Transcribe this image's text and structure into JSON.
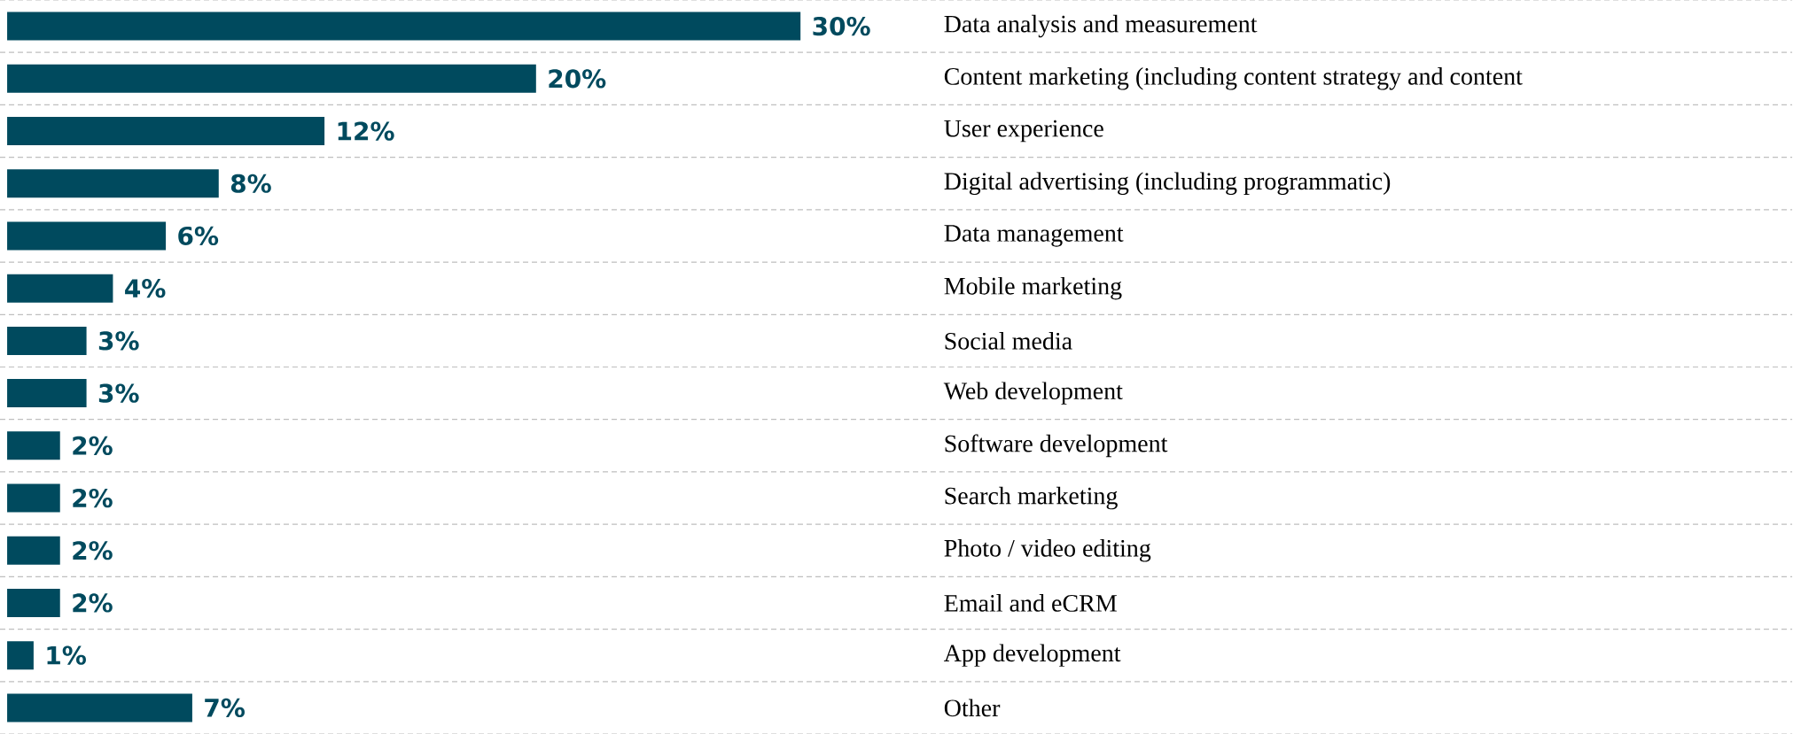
{
  "chart_data": {
    "type": "bar",
    "orientation": "horizontal",
    "categories": [
      "Data analysis and measurement",
      "Content marketing (including content strategy and content",
      "User experience",
      "Digital advertising (including programmatic)",
      "Data management",
      "Mobile marketing",
      "Social media",
      "Web development",
      "Software development",
      "Search marketing",
      "Photo / video editing",
      "Email and eCRM",
      "App development",
      "Other"
    ],
    "values": [
      30,
      20,
      12,
      8,
      6,
      4,
      3,
      3,
      2,
      2,
      2,
      2,
      1,
      7
    ],
    "value_labels": [
      "30%",
      "20%",
      "12%",
      "8%",
      "6%",
      "4%",
      "3%",
      "3%",
      "2%",
      "2%",
      "2%",
      "2%",
      "1%",
      "7%"
    ],
    "color": "#004a5e",
    "tick_labels": "y",
    "grid": "y"
  }
}
